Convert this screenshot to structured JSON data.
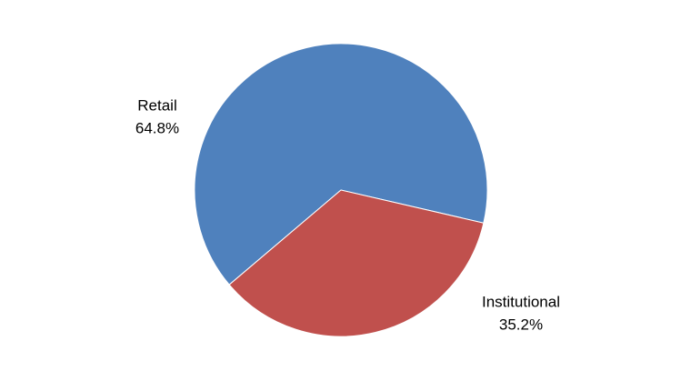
{
  "chart_data": {
    "type": "pie",
    "categories": [
      "Retail",
      "Institutional"
    ],
    "values": [
      64.8,
      35.2
    ],
    "value_labels": [
      "64.8%",
      "35.2%"
    ],
    "colors": [
      "#4f81bd",
      "#c0504d"
    ]
  }
}
